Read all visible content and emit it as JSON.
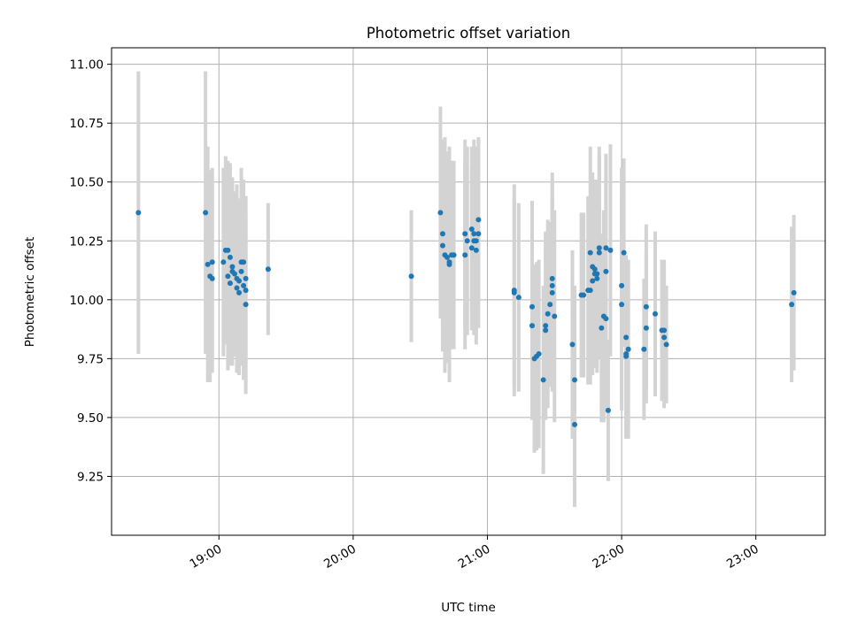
{
  "chart_data": {
    "type": "scatter",
    "title": "Photometric offset variation",
    "xlabel": "UTC time",
    "ylabel": "Photometric offset",
    "xlim": [
      "18:12",
      "23:31"
    ],
    "ylim": [
      9.0,
      11.07
    ],
    "grid": true,
    "legend": "none",
    "colors": {
      "point": "#1f77b4",
      "errorbar": "#d3d3d3"
    },
    "x_ticks": [
      "19:00",
      "20:00",
      "21:00",
      "22:00",
      "23:00"
    ],
    "y_ticks": [
      "9.25",
      "9.50",
      "9.75",
      "10.00",
      "10.25",
      "10.50",
      "10.75",
      "11.00"
    ],
    "points": [
      {
        "t": "18:24",
        "y": 10.37,
        "err": 0.6
      },
      {
        "t": "18:54",
        "y": 10.37,
        "err": 0.6
      },
      {
        "t": "18:55",
        "y": 10.15,
        "err": 0.5
      },
      {
        "t": "18:56",
        "y": 10.1,
        "err": 0.45
      },
      {
        "t": "18:57",
        "y": 10.16,
        "err": 0.4
      },
      {
        "t": "18:57",
        "y": 10.09,
        "err": 0.4
      },
      {
        "t": "19:02",
        "y": 10.16,
        "err": 0.4
      },
      {
        "t": "19:03",
        "y": 10.21,
        "err": 0.4
      },
      {
        "t": "19:04",
        "y": 10.21,
        "err": 0.38
      },
      {
        "t": "19:04",
        "y": 10.1,
        "err": 0.4
      },
      {
        "t": "19:05",
        "y": 10.07,
        "err": 0.35
      },
      {
        "t": "19:05",
        "y": 10.18,
        "err": 0.4
      },
      {
        "t": "19:06",
        "y": 10.12,
        "err": 0.4
      },
      {
        "t": "19:06",
        "y": 10.14,
        "err": 0.36
      },
      {
        "t": "19:07",
        "y": 10.11,
        "err": 0.35
      },
      {
        "t": "19:08",
        "y": 10.05,
        "err": 0.35
      },
      {
        "t": "19:08",
        "y": 10.09,
        "err": 0.4
      },
      {
        "t": "19:09",
        "y": 10.08,
        "err": 0.35
      },
      {
        "t": "19:09",
        "y": 10.03,
        "err": 0.35
      },
      {
        "t": "19:10",
        "y": 10.16,
        "err": 0.4
      },
      {
        "t": "19:10",
        "y": 10.12,
        "err": 0.4
      },
      {
        "t": "19:11",
        "y": 10.06,
        "err": 0.4
      },
      {
        "t": "19:11",
        "y": 10.16,
        "err": 0.35
      },
      {
        "t": "19:12",
        "y": 10.04,
        "err": 0.4
      },
      {
        "t": "19:12",
        "y": 10.09,
        "err": 0.35
      },
      {
        "t": "19:12",
        "y": 9.98,
        "err": 0.38
      },
      {
        "t": "19:22",
        "y": 10.13,
        "err": 0.28
      },
      {
        "t": "20:26",
        "y": 10.1,
        "err": 0.28
      },
      {
        "t": "20:39",
        "y": 10.37,
        "err": 0.45
      },
      {
        "t": "20:40",
        "y": 10.28,
        "err": 0.4
      },
      {
        "t": "20:40",
        "y": 10.23,
        "err": 0.45
      },
      {
        "t": "20:41",
        "y": 10.19,
        "err": 0.5
      },
      {
        "t": "20:42",
        "y": 10.18,
        "err": 0.45
      },
      {
        "t": "20:43",
        "y": 10.15,
        "err": 0.5
      },
      {
        "t": "20:43",
        "y": 10.16,
        "err": 0.45
      },
      {
        "t": "20:44",
        "y": 10.19,
        "err": 0.4
      },
      {
        "t": "20:45",
        "y": 10.19,
        "err": 0.4
      },
      {
        "t": "20:50",
        "y": 10.28,
        "err": 0.4
      },
      {
        "t": "20:50",
        "y": 10.19,
        "err": 0.4
      },
      {
        "t": "20:51",
        "y": 10.25,
        "err": 0.4
      },
      {
        "t": "20:53",
        "y": 10.3,
        "err": 0.35
      },
      {
        "t": "20:53",
        "y": 10.22,
        "err": 0.35
      },
      {
        "t": "20:54",
        "y": 10.25,
        "err": 0.4
      },
      {
        "t": "20:54",
        "y": 10.28,
        "err": 0.4
      },
      {
        "t": "20:55",
        "y": 10.25,
        "err": 0.4
      },
      {
        "t": "20:55",
        "y": 10.21,
        "err": 0.4
      },
      {
        "t": "20:56",
        "y": 10.28,
        "err": 0.4
      },
      {
        "t": "20:56",
        "y": 10.34,
        "err": 0.35
      },
      {
        "t": "21:12",
        "y": 10.04,
        "err": 0.45
      },
      {
        "t": "21:12",
        "y": 10.03,
        "err": 0.4
      },
      {
        "t": "21:14",
        "y": 10.01,
        "err": 0.4
      },
      {
        "t": "21:20",
        "y": 9.89,
        "err": 0.4
      },
      {
        "t": "21:20",
        "y": 9.97,
        "err": 0.45
      },
      {
        "t": "21:21",
        "y": 9.75,
        "err": 0.4
      },
      {
        "t": "21:22",
        "y": 9.76,
        "err": 0.4
      },
      {
        "t": "21:23",
        "y": 9.77,
        "err": 0.4
      },
      {
        "t": "21:25",
        "y": 9.66,
        "err": 0.4
      },
      {
        "t": "21:26",
        "y": 9.87,
        "err": 0.38
      },
      {
        "t": "21:26",
        "y": 9.89,
        "err": 0.4
      },
      {
        "t": "21:27",
        "y": 9.94,
        "err": 0.4
      },
      {
        "t": "21:28",
        "y": 9.98,
        "err": 0.35
      },
      {
        "t": "21:29",
        "y": 10.06,
        "err": 0.45
      },
      {
        "t": "21:29",
        "y": 10.09,
        "err": 0.45
      },
      {
        "t": "21:29",
        "y": 10.03,
        "err": 0.4
      },
      {
        "t": "21:30",
        "y": 9.93,
        "err": 0.45
      },
      {
        "t": "21:38",
        "y": 9.81,
        "err": 0.4
      },
      {
        "t": "21:39",
        "y": 9.66,
        "err": 0.4
      },
      {
        "t": "21:39",
        "y": 9.47,
        "err": 0.35
      },
      {
        "t": "21:42",
        "y": 10.02,
        "err": 0.35
      },
      {
        "t": "21:43",
        "y": 10.02,
        "err": 0.35
      },
      {
        "t": "21:45",
        "y": 10.04,
        "err": 0.4
      },
      {
        "t": "21:46",
        "y": 10.04,
        "err": 0.4
      },
      {
        "t": "21:46",
        "y": 10.2,
        "err": 0.45
      },
      {
        "t": "21:47",
        "y": 10.14,
        "err": 0.4
      },
      {
        "t": "21:47",
        "y": 10.08,
        "err": 0.4
      },
      {
        "t": "21:48",
        "y": 10.11,
        "err": 0.4
      },
      {
        "t": "21:48",
        "y": 10.13,
        "err": 0.38
      },
      {
        "t": "21:49",
        "y": 10.09,
        "err": 0.4
      },
      {
        "t": "21:49",
        "y": 10.11,
        "err": 0.4
      },
      {
        "t": "21:50",
        "y": 10.22,
        "err": 0.4
      },
      {
        "t": "21:50",
        "y": 10.2,
        "err": 0.45
      },
      {
        "t": "21:51",
        "y": 9.88,
        "err": 0.4
      },
      {
        "t": "21:52",
        "y": 9.93,
        "err": 0.45
      },
      {
        "t": "21:53",
        "y": 10.12,
        "err": 0.4
      },
      {
        "t": "21:53",
        "y": 10.22,
        "err": 0.4
      },
      {
        "t": "21:53",
        "y": 9.92,
        "err": 0.4
      },
      {
        "t": "21:54",
        "y": 9.53,
        "err": 0.3
      },
      {
        "t": "21:55",
        "y": 10.21,
        "err": 0.45
      },
      {
        "t": "22:00",
        "y": 10.06,
        "err": 0.5
      },
      {
        "t": "22:00",
        "y": 9.98,
        "err": 0.45
      },
      {
        "t": "22:01",
        "y": 10.2,
        "err": 0.4
      },
      {
        "t": "22:02",
        "y": 9.84,
        "err": 0.35
      },
      {
        "t": "22:02",
        "y": 9.76,
        "err": 0.35
      },
      {
        "t": "22:02",
        "y": 9.77,
        "err": 0.35
      },
      {
        "t": "22:03",
        "y": 9.79,
        "err": 0.38
      },
      {
        "t": "22:10",
        "y": 9.79,
        "err": 0.3
      },
      {
        "t": "22:11",
        "y": 9.88,
        "err": 0.32
      },
      {
        "t": "22:11",
        "y": 9.97,
        "err": 0.35
      },
      {
        "t": "22:15",
        "y": 9.94,
        "err": 0.35
      },
      {
        "t": "22:18",
        "y": 9.87,
        "err": 0.3
      },
      {
        "t": "22:19",
        "y": 9.87,
        "err": 0.3
      },
      {
        "t": "22:19",
        "y": 9.84,
        "err": 0.3
      },
      {
        "t": "22:20",
        "y": 9.81,
        "err": 0.25
      },
      {
        "t": "23:16",
        "y": 9.98,
        "err": 0.33
      },
      {
        "t": "23:17",
        "y": 10.03,
        "err": 0.33
      }
    ]
  }
}
